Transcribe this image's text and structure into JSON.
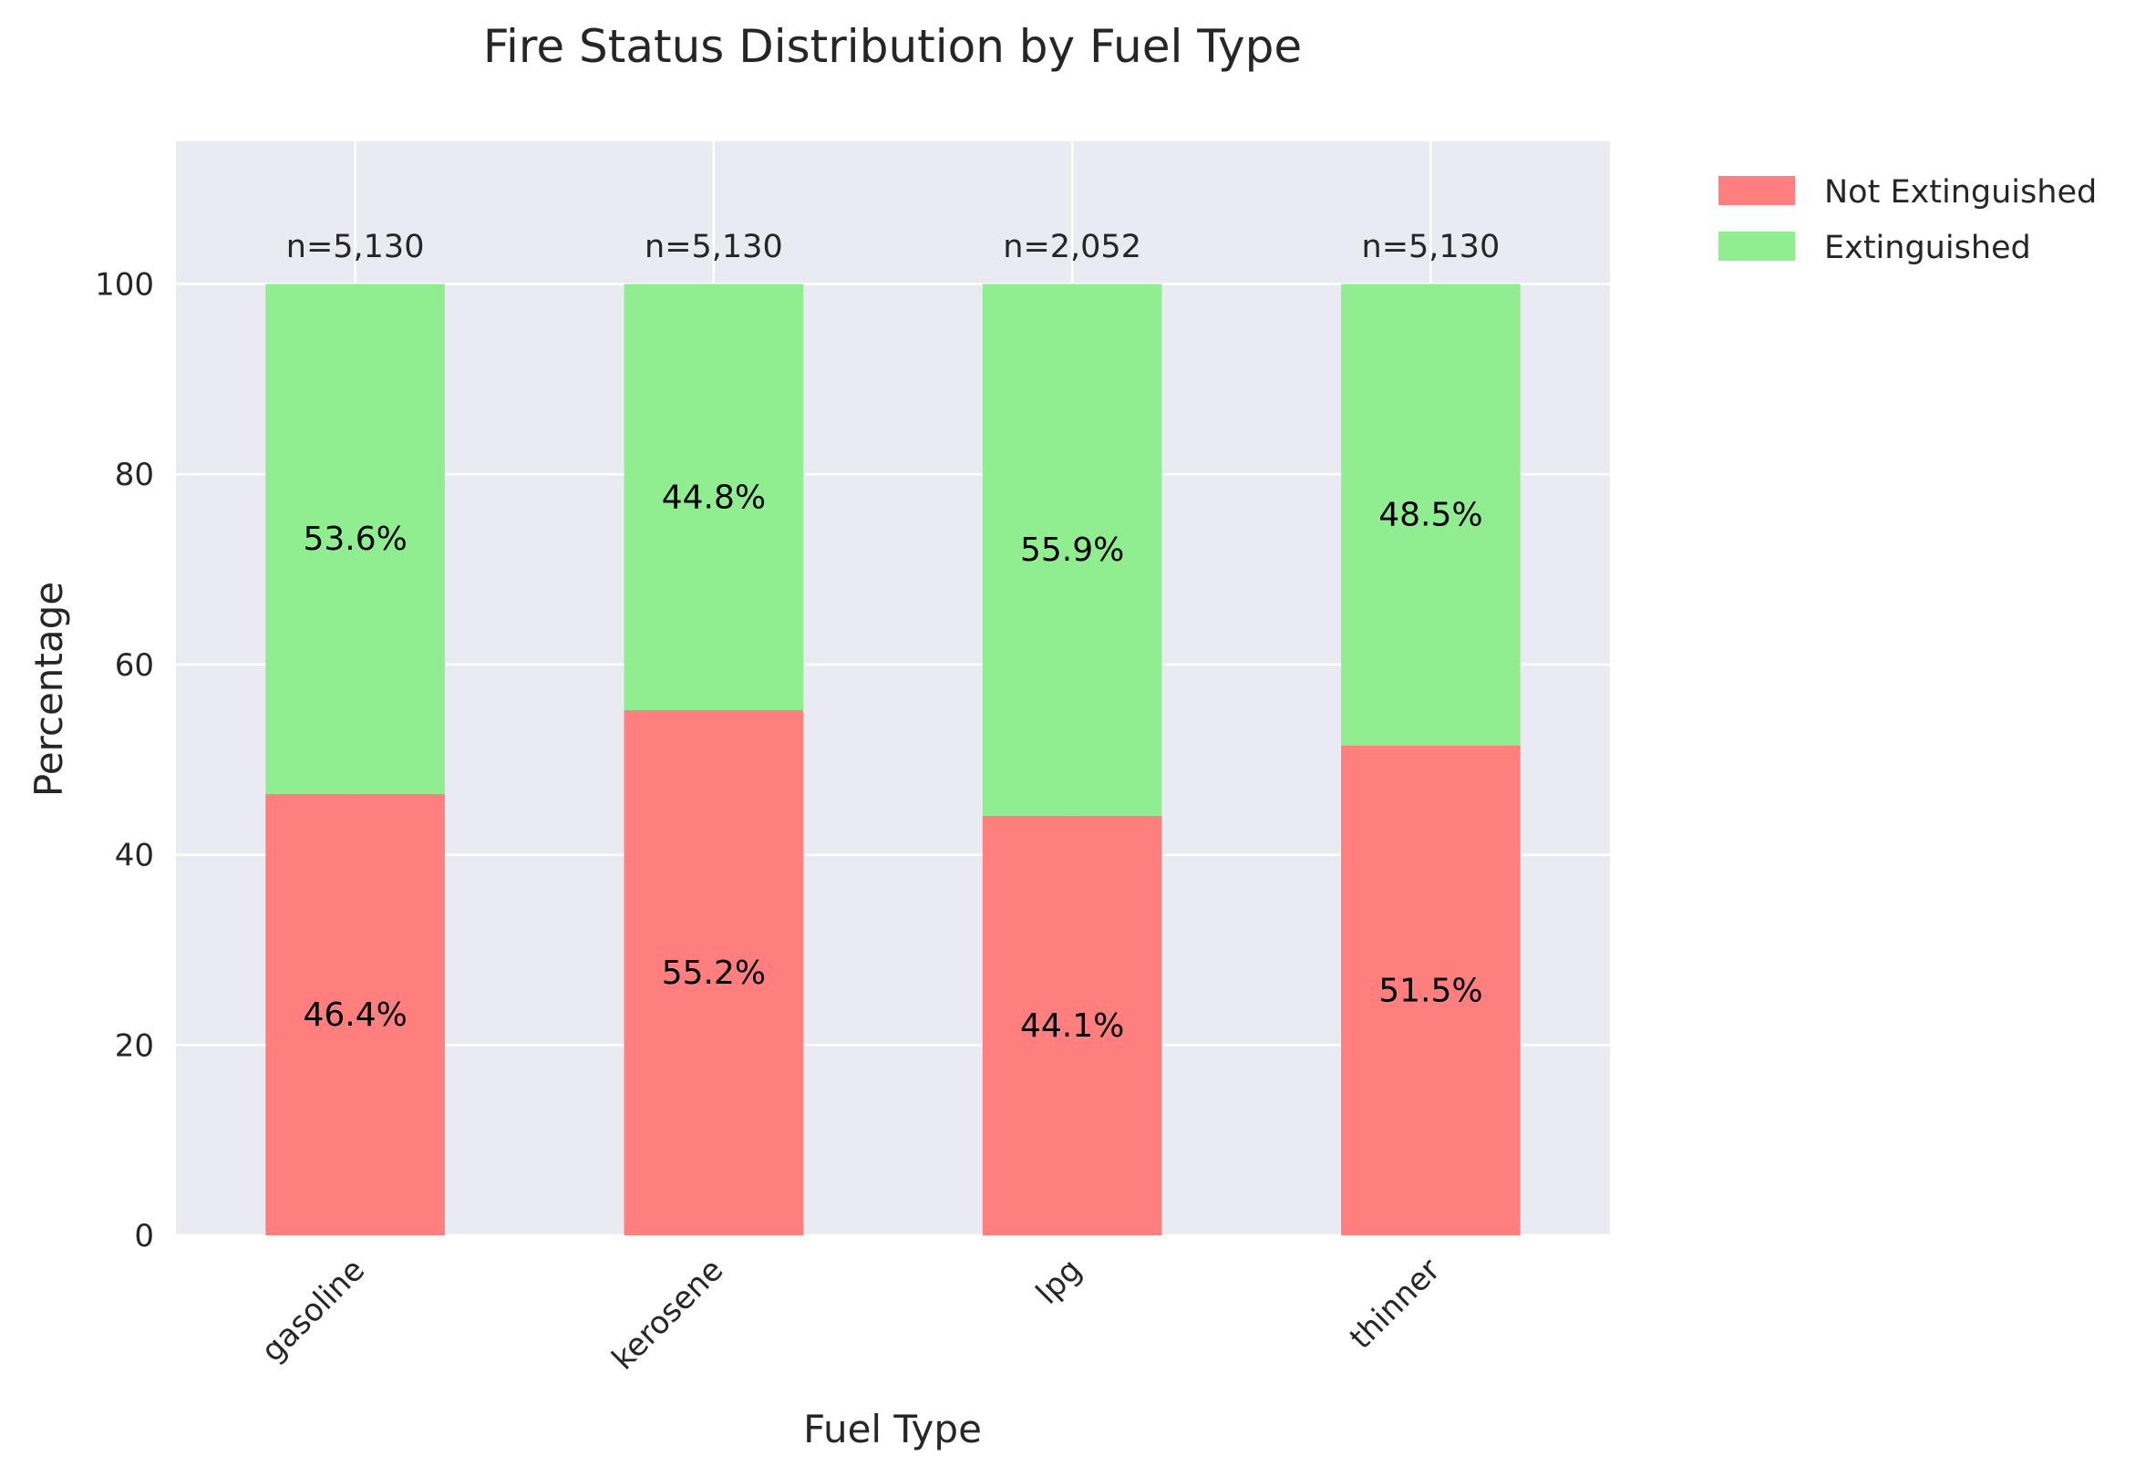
{
  "chart_data": {
    "type": "bar",
    "stacked": true,
    "title": "Fire Status Distribution by Fuel Type",
    "xlabel": "Fuel Type",
    "ylabel": "Percentage",
    "categories": [
      "gasoline",
      "kerosene",
      "lpg",
      "thinner"
    ],
    "series": [
      {
        "name": "Not Extinguished",
        "values": [
          46.4,
          55.2,
          44.1,
          51.5
        ],
        "color": "#ff7f7f",
        "labels": [
          "46.4%",
          "55.2%",
          "44.1%",
          "51.5%"
        ]
      },
      {
        "name": "Extinguished",
        "values": [
          53.6,
          44.8,
          55.9,
          48.5
        ],
        "color": "#90ee90",
        "labels": [
          "53.6%",
          "44.8%",
          "55.9%",
          "48.5%"
        ]
      }
    ],
    "counts": [
      "n=5,130",
      "n=5,130",
      "n=2,052",
      "n=5,130"
    ],
    "ylim": [
      0,
      115
    ],
    "yticks": [
      0,
      20,
      40,
      60,
      80,
      100
    ],
    "grid": true,
    "legend_position": "outside-top-right",
    "background_color": "#eaeaf2"
  }
}
